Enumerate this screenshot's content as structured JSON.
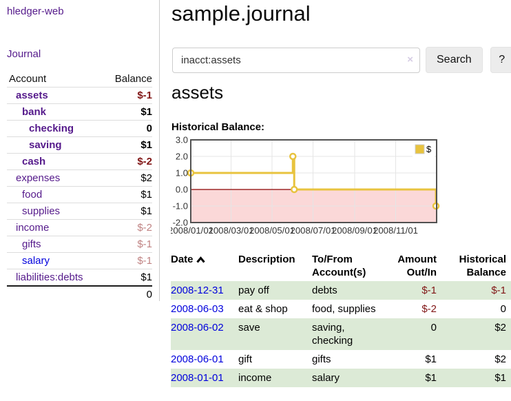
{
  "colors": {
    "purple_link": "#551A8B",
    "blue_link": "#0000DD",
    "negative_strong": "#801515",
    "negative_soft": "#c08383",
    "row_green": "#dcead6",
    "chart_line_yellow": "#e8c33e",
    "chart_negative_fill": "#fbd8d8",
    "chart_zero_line": "#8b0000"
  },
  "sidebar": {
    "app_title": "hledger-web",
    "nav_journal": "Journal",
    "accounts": {
      "headers": {
        "account": "Account",
        "balance": "Balance"
      },
      "rows": [
        {
          "name": "assets",
          "balance": "$-1",
          "depth": 1,
          "bold": true
        },
        {
          "name": "bank",
          "balance": "$1",
          "depth": 2,
          "bold": true
        },
        {
          "name": "checking",
          "balance": "0",
          "depth": 3,
          "bold": true
        },
        {
          "name": "saving",
          "balance": "$1",
          "depth": 3,
          "bold": true
        },
        {
          "name": "cash",
          "balance": "$-2",
          "depth": 2,
          "bold": true
        },
        {
          "name": "expenses",
          "balance": "$2",
          "depth": 1,
          "bold": false
        },
        {
          "name": "food",
          "balance": "$1",
          "depth": 2,
          "bold": false
        },
        {
          "name": "supplies",
          "balance": "$1",
          "depth": 2,
          "bold": false
        },
        {
          "name": "income",
          "balance": "$-2",
          "depth": 1,
          "bold": false
        },
        {
          "name": "gifts",
          "balance": "$-1",
          "depth": 2,
          "bold": false
        },
        {
          "name": "salary",
          "balance": "$-1",
          "depth": 2,
          "bold": false
        },
        {
          "name": "liabilities:debts",
          "balance": "$1",
          "depth": 1,
          "bold": false
        }
      ],
      "total": "0"
    }
  },
  "main": {
    "title": "sample.journal",
    "search": {
      "value": "inacct:assets",
      "clear_icon": "×",
      "button_label": "Search",
      "help_label": "?"
    },
    "account_heading": "assets",
    "register": {
      "headers": {
        "date": "Date",
        "date_sort_icon": "chevron-up-icon",
        "description": "Description",
        "accounts": "To/From Account(s)",
        "amount": "Amount Out/In",
        "balance": "Historical Balance"
      },
      "rows": [
        {
          "date": "2008-12-31",
          "description": "pay off",
          "accounts": "debts",
          "amount": "$-1",
          "balance": "$-1"
        },
        {
          "date": "2008-06-03",
          "description": "eat & shop",
          "accounts": "food, supplies",
          "amount": "$-2",
          "balance": "0"
        },
        {
          "date": "2008-06-02",
          "description": "save",
          "accounts": "saving, checking",
          "amount": "0",
          "balance": "$2"
        },
        {
          "date": "2008-06-01",
          "description": "gift",
          "accounts": "gifts",
          "amount": "$1",
          "balance": "$2"
        },
        {
          "date": "2008-01-01",
          "description": "income",
          "accounts": "salary",
          "amount": "$1",
          "balance": "$1"
        }
      ]
    }
  },
  "chart_data": {
    "type": "line",
    "title": "Historical Balance:",
    "step": true,
    "series": [
      {
        "name": "$",
        "points": [
          {
            "x": "2008-01-01",
            "y": 1
          },
          {
            "x": "2008-06-01",
            "y": 2
          },
          {
            "x": "2008-06-03",
            "y": 0
          },
          {
            "x": "2008-12-31",
            "y": -1
          }
        ]
      }
    ],
    "xlim": [
      "2008-01-01",
      "2009-01-01"
    ],
    "ylim": [
      -2,
      3
    ],
    "yticks": [
      3.0,
      2.0,
      1.0,
      0.0,
      -1.0,
      -2.0
    ],
    "ytick_labels": [
      "3.0",
      "2.0",
      "1.0",
      "0.0",
      "-1.0",
      "-2.0"
    ],
    "xticks": [
      "2008-01-01",
      "2008-03-01",
      "2008-05-01",
      "2008-07-01",
      "2008-09-01",
      "2008-11-01"
    ],
    "xtick_labels": [
      "2008/01/01",
      "2008/03/01",
      "2008/05/01",
      "2008/07/01",
      "2008/09/01",
      "2008/11/01"
    ],
    "grid": true,
    "legend": {
      "position": "top-right",
      "label": "$"
    },
    "negative_region_shaded": true
  }
}
